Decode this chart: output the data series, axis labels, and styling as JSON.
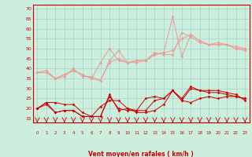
{
  "background_color": "#cceedd",
  "grid_color": "#99cccc",
  "line_color_light": "#ee9999",
  "line_color_dark": "#cc0000",
  "xlabel": "Vent moyen/en rafales ( km/h )",
  "xlim": [
    -0.5,
    23.5
  ],
  "ylim": [
    13,
    72
  ],
  "yticks": [
    15,
    20,
    25,
    30,
    35,
    40,
    45,
    50,
    55,
    60,
    65,
    70
  ],
  "xticks": [
    0,
    1,
    2,
    3,
    4,
    5,
    6,
    7,
    8,
    9,
    10,
    11,
    12,
    13,
    14,
    15,
    16,
    17,
    18,
    19,
    20,
    21,
    22,
    23
  ],
  "x": [
    0,
    1,
    2,
    3,
    4,
    5,
    6,
    7,
    8,
    9,
    10,
    11,
    12,
    13,
    14,
    15,
    16,
    17,
    18,
    19,
    20,
    21,
    22,
    23
  ],
  "series_light": [
    [
      38,
      39,
      35,
      36,
      40,
      36,
      36,
      34,
      44,
      49,
      43,
      44,
      44,
      48,
      47,
      47,
      58,
      56,
      53,
      52,
      53,
      52,
      50,
      50
    ],
    [
      38,
      38,
      35,
      37,
      39,
      37,
      35,
      34,
      43,
      45,
      43,
      44,
      44,
      47,
      48,
      49,
      55,
      57,
      54,
      52,
      52,
      52,
      50,
      49
    ],
    [
      38,
      38,
      35,
      37,
      39,
      37,
      35,
      43,
      50,
      44,
      43,
      43,
      44,
      47,
      48,
      66,
      46,
      57,
      54,
      52,
      52,
      52,
      51,
      50
    ]
  ],
  "series_dark": [
    [
      20,
      23,
      18,
      19,
      19,
      16,
      16,
      16,
      26,
      20,
      19,
      19,
      25,
      26,
      25,
      29,
      24,
      30,
      29,
      28,
      28,
      27,
      26,
      25
    ],
    [
      20,
      23,
      23,
      22,
      22,
      18,
      16,
      21,
      24,
      24,
      20,
      19,
      19,
      24,
      25,
      29,
      25,
      31,
      29,
      29,
      29,
      28,
      27,
      24
    ],
    [
      20,
      22,
      18,
      19,
      19,
      16,
      16,
      16,
      27,
      19,
      20,
      18,
      18,
      19,
      22,
      29,
      24,
      23,
      25,
      26,
      25,
      26,
      26,
      25
    ]
  ]
}
